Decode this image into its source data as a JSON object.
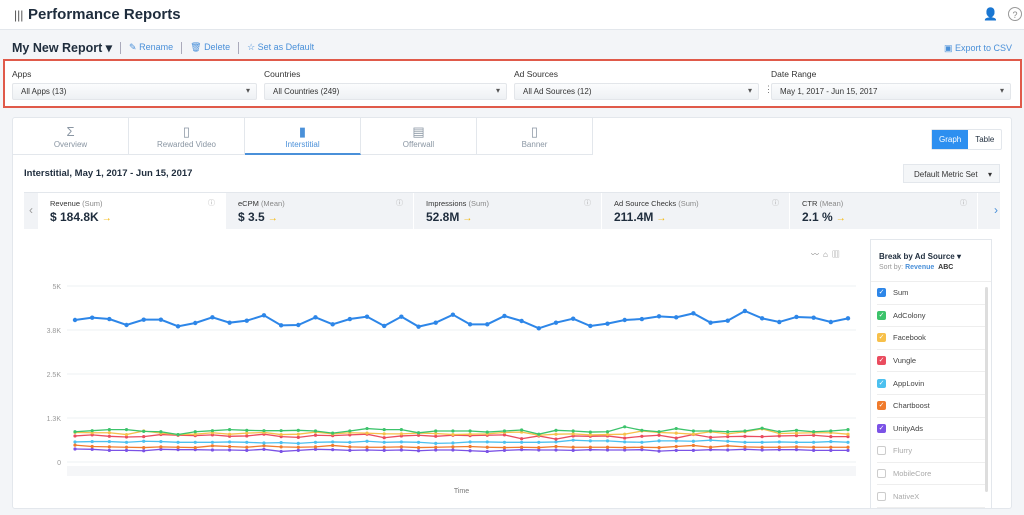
{
  "header": {
    "title": "Performance Reports",
    "menu_icon": "menu-icon",
    "user_icon": "user-icon",
    "help_icon": "help-icon"
  },
  "report": {
    "name": "My New Report",
    "rename": "Rename",
    "delete": "Delete",
    "set_default": "Set as Default",
    "export": "Export to CSV"
  },
  "filters": [
    {
      "label": "Apps",
      "value": "All Apps (13)"
    },
    {
      "label": "Countries",
      "value": "All Countries (249)"
    },
    {
      "label": "Ad Sources",
      "value": "All Ad Sources (12)"
    },
    {
      "label": "Date Range",
      "value": "May 1, 2017 - Jun 15, 2017"
    }
  ],
  "tabs": [
    {
      "label": "Overview",
      "icon": "Σ"
    },
    {
      "label": "Rewarded Video",
      "icon": "▯"
    },
    {
      "label": "Interstitial",
      "icon": "▮",
      "active": true
    },
    {
      "label": "Offerwall",
      "icon": "▤"
    },
    {
      "label": "Banner",
      "icon": "▯"
    }
  ],
  "view_toggle": {
    "graph": "Graph",
    "table": "Table",
    "selected": "Graph"
  },
  "panel_title": "Interstitial, May 1, 2017 - Jun 15, 2017",
  "metric_set": "Default Metric Set",
  "metrics": [
    {
      "name": "Revenue",
      "agg": "(Sum)",
      "value": "$ 184.8K"
    },
    {
      "name": "eCPM",
      "agg": "(Mean)",
      "value": "$ 3.5"
    },
    {
      "name": "Impressions",
      "agg": "(Sum)",
      "value": "52.8M"
    },
    {
      "name": "Ad Source Checks",
      "agg": "(Sum)",
      "value": "211.4M"
    },
    {
      "name": "CTR",
      "agg": "(Mean)",
      "value": "2.1 %"
    }
  ],
  "legend": {
    "title": "Break by Ad Source",
    "sort_label": "Sort by:",
    "sort_revenue": "Revenue",
    "sort_abc": "ABC",
    "items": [
      {
        "name": "Sum",
        "checked": true,
        "color": "#2d86e8"
      },
      {
        "name": "AdColony",
        "checked": true,
        "color": "#3cc36b"
      },
      {
        "name": "Facebook",
        "checked": true,
        "color": "#f7c04a"
      },
      {
        "name": "Vungle",
        "checked": true,
        "color": "#ea4c5f"
      },
      {
        "name": "AppLovin",
        "checked": true,
        "color": "#4cc0ef"
      },
      {
        "name": "Chartboost",
        "checked": true,
        "color": "#f07b2d"
      },
      {
        "name": "UnityAds",
        "checked": true,
        "color": "#7b52e6"
      },
      {
        "name": "Flurry",
        "checked": false
      },
      {
        "name": "MobileCore",
        "checked": false
      },
      {
        "name": "NativeX",
        "checked": false
      }
    ]
  },
  "chart_data": {
    "type": "line",
    "xlabel": "Time",
    "ylabel": "",
    "ylim": [
      0,
      5000
    ],
    "yticks": [
      "0",
      "1.3K",
      "2.5K",
      "3.8K",
      "5K"
    ],
    "grid": true,
    "series": [
      {
        "name": "Sum",
        "color": "#2d86e8",
        "values": [
          4034,
          4100,
          4062,
          3892,
          4043,
          4043,
          3854,
          3949,
          4110,
          3958,
          4015,
          4167,
          3882,
          3892,
          4110,
          3911,
          4062,
          4129,
          3864,
          4129,
          3845,
          3958,
          4185,
          3911,
          3911,
          4148,
          4006,
          3797,
          3958,
          4072,
          3864,
          3930,
          4034,
          4062,
          4138,
          4110,
          4223,
          3958,
          4015,
          4290,
          4081,
          3977,
          4120,
          4100,
          3977,
          4081
        ]
      },
      {
        "name": "AdColony",
        "color": "#3cc36b",
        "values": [
          860,
          890,
          920,
          920,
          870,
          860,
          780,
          860,
          890,
          920,
          900,
          890,
          890,
          900,
          880,
          820,
          880,
          950,
          920,
          920,
          830,
          880,
          880,
          880,
          850,
          880,
          910,
          790,
          900,
          880,
          850,
          860,
          1000,
          900,
          860,
          950,
          880,
          880,
          860,
          880,
          960,
          860,
          900,
          860,
          880,
          920
        ]
      },
      {
        "name": "Facebook",
        "color": "#f7c04a",
        "values": [
          840,
          830,
          830,
          780,
          880,
          820,
          780,
          790,
          830,
          790,
          820,
          840,
          780,
          790,
          850,
          800,
          830,
          820,
          800,
          800,
          820,
          810,
          780,
          790,
          800,
          840,
          850,
          760,
          790,
          800,
          770,
          780,
          790,
          880,
          840,
          820,
          790,
          860,
          800,
          860,
          940,
          810,
          820,
          830,
          830,
          790
        ]
      },
      {
        "name": "Vungle",
        "color": "#ea4c5f",
        "values": [
          740,
          770,
          730,
          710,
          720,
          780,
          760,
          750,
          770,
          730,
          740,
          790,
          720,
          700,
          760,
          750,
          770,
          790,
          690,
          740,
          760,
          730,
          760,
          750,
          760,
          770,
          660,
          740,
          650,
          740,
          730,
          740,
          680,
          730,
          760,
          680,
          780,
          700,
          720,
          730,
          720,
          740,
          750,
          760,
          720,
          720
        ]
      },
      {
        "name": "AppLovin",
        "color": "#4cc0ef",
        "values": [
          570,
          580,
          580,
          560,
          590,
          580,
          560,
          560,
          560,
          570,
          560,
          540,
          550,
          530,
          560,
          570,
          560,
          590,
          560,
          570,
          560,
          530,
          540,
          570,
          570,
          560,
          560,
          560,
          570,
          620,
          600,
          600,
          570,
          560,
          600,
          600,
          590,
          620,
          590,
          560,
          560,
          570,
          560,
          560,
          580,
          560
        ]
      },
      {
        "name": "Chartboost",
        "color": "#f07b2d",
        "values": [
          480,
          440,
          430,
          420,
          410,
          430,
          420,
          410,
          460,
          440,
          420,
          460,
          430,
          420,
          430,
          470,
          430,
          420,
          420,
          430,
          410,
          420,
          430,
          440,
          420,
          410,
          420,
          410,
          440,
          420,
          420,
          420,
          410,
          420,
          410,
          440,
          470,
          420,
          460,
          430,
          420,
          420,
          430,
          420,
          420,
          420
        ]
      },
      {
        "name": "UnityAds",
        "color": "#7b52e6",
        "values": [
          370,
          360,
          330,
          330,
          320,
          360,
          350,
          350,
          340,
          340,
          330,
          360,
          300,
          330,
          360,
          350,
          330,
          340,
          330,
          340,
          320,
          340,
          340,
          320,
          300,
          330,
          350,
          340,
          340,
          330,
          350,
          340,
          340,
          350,
          310,
          330,
          330,
          350,
          340,
          360,
          340,
          350,
          350,
          330,
          330,
          330
        ]
      }
    ]
  }
}
